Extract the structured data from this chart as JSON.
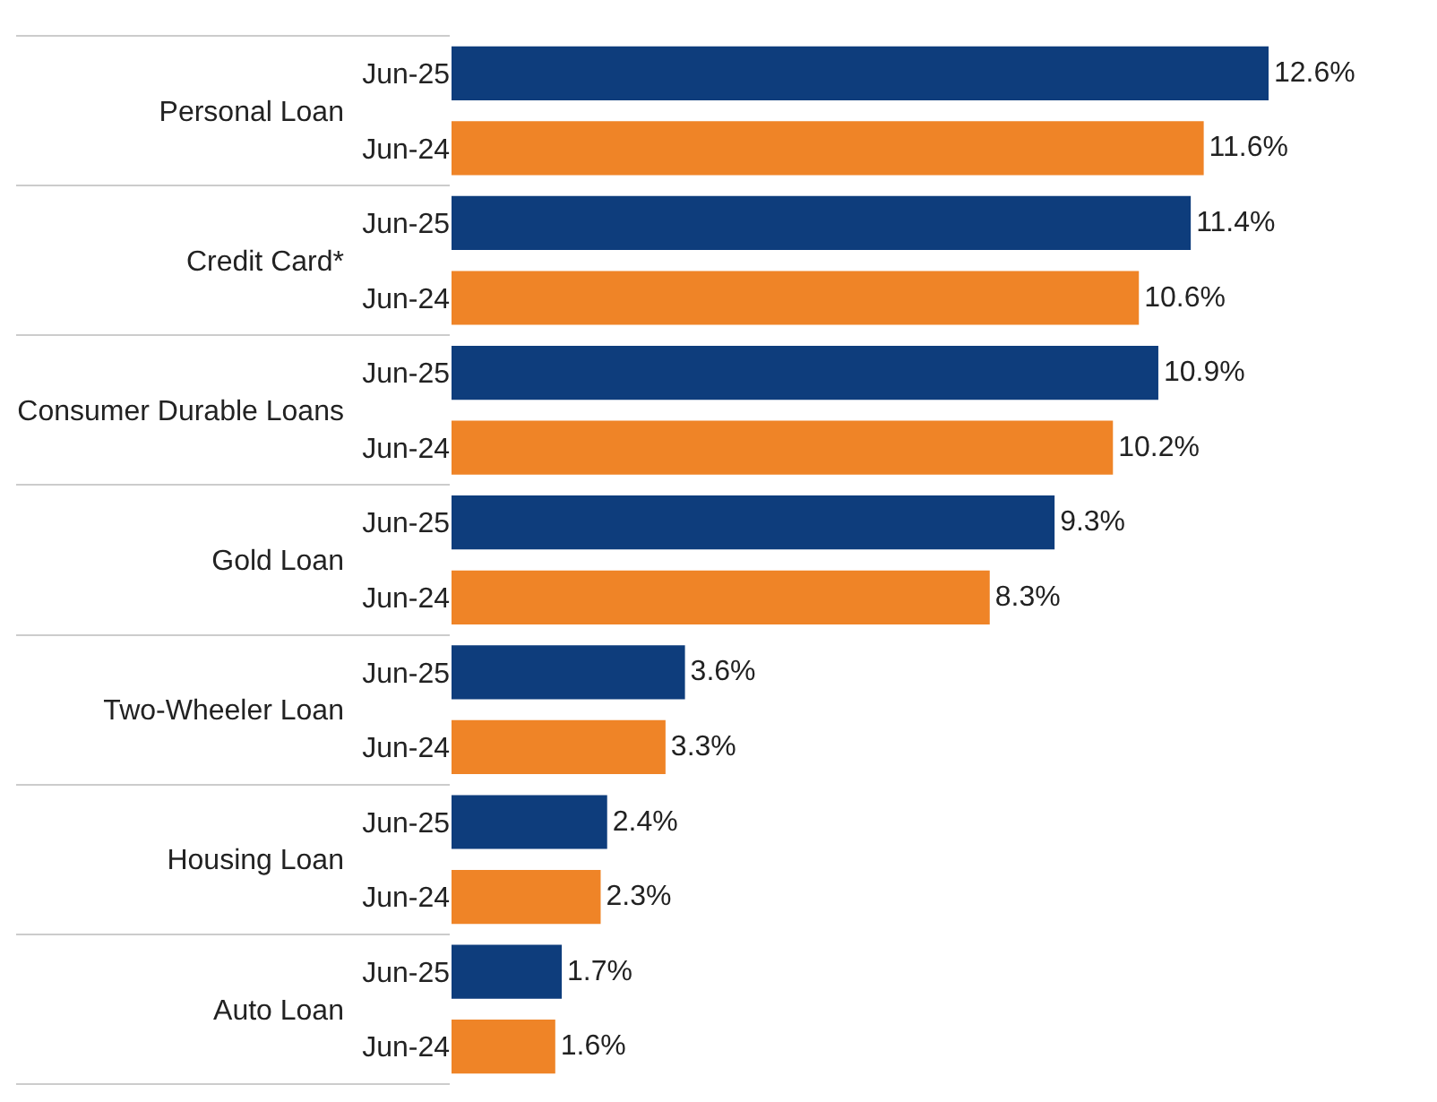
{
  "chart_data": {
    "type": "bar",
    "orientation": "horizontal",
    "tick_labels": "y",
    "categories": [
      "Personal Loan",
      "Credit Card*",
      "Consumer Durable Loans",
      "Gold Loan",
      "Two-Wheeler Loan",
      "Housing Loan",
      "Auto Loan"
    ],
    "series": [
      {
        "name": "Jun-25",
        "color": "#0e3d7c",
        "values": [
          12.6,
          11.4,
          10.9,
          9.3,
          3.6,
          2.4,
          1.7
        ],
        "value_labels": [
          "12.6%",
          "11.4%",
          "10.9%",
          "9.3%",
          "3.6%",
          "2.4%",
          "1.7%"
        ]
      },
      {
        "name": "Jun-24",
        "color": "#ef8427",
        "values": [
          11.6,
          10.6,
          10.2,
          8.3,
          3.3,
          2.3,
          1.6
        ],
        "value_labels": [
          "11.6%",
          "10.6%",
          "10.2%",
          "8.3%",
          "3.3%",
          "2.3%",
          "1.6%"
        ]
      }
    ]
  }
}
